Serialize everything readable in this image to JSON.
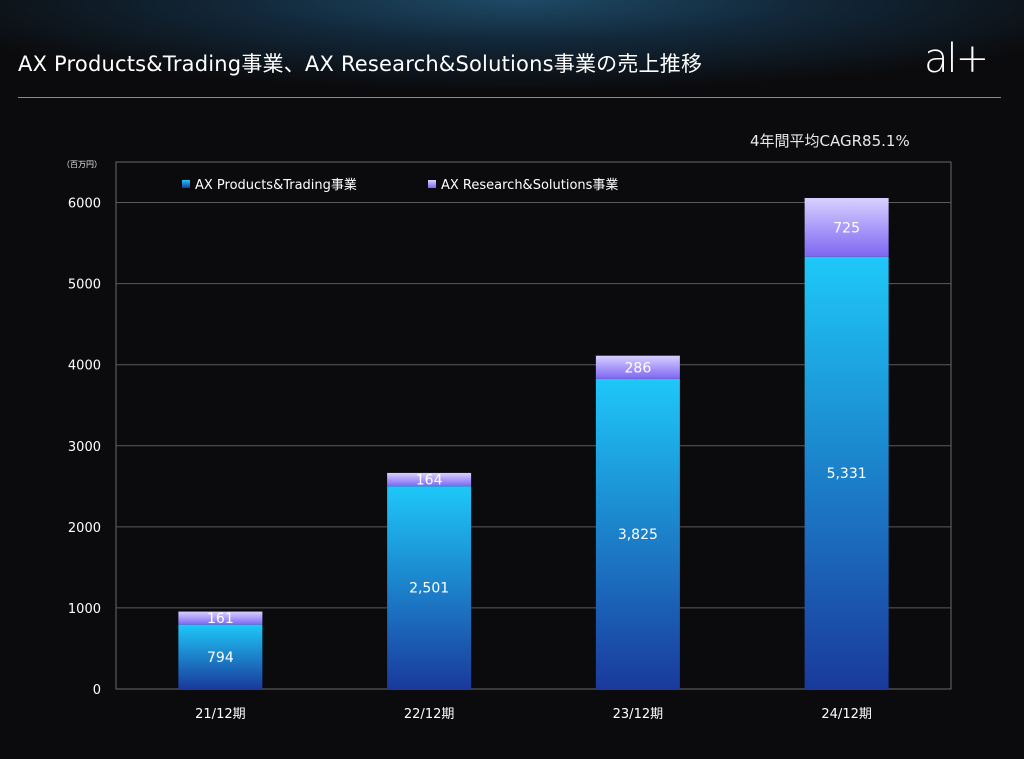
{
  "header": {
    "title": "AX Products&Trading事業、AX Research&Solutions事業の売上推移",
    "logo": "al+"
  },
  "annotation": "4年間平均CAGR85.1%",
  "colors": {
    "background": "#0b0b0d",
    "series_1_top": "#1ec8f8",
    "series_1_bottom": "#1a3a9c",
    "series_2_top": "#d8d0ff",
    "series_2_bottom": "#7e66f2"
  },
  "chart_data": {
    "type": "bar",
    "stacked": true,
    "unit": "（百万円）",
    "categories": [
      "21/12期",
      "22/12期",
      "23/12期",
      "24/12期"
    ],
    "series": [
      {
        "name": "AX Products&Trading事業",
        "values": [
          794,
          2501,
          3825,
          5331
        ],
        "value_labels": [
          "794",
          "2,501",
          "3,825",
          "5,331"
        ]
      },
      {
        "name": "AX Research&Solutions事業",
        "values": [
          161,
          164,
          286,
          725
        ],
        "value_labels": [
          "161",
          "164",
          "286",
          "725"
        ]
      }
    ],
    "ylim": [
      0,
      6500
    ],
    "yticks": [
      0,
      1000,
      2000,
      3000,
      4000,
      5000,
      6000
    ],
    "grid": true,
    "legend_position": "top-left"
  }
}
